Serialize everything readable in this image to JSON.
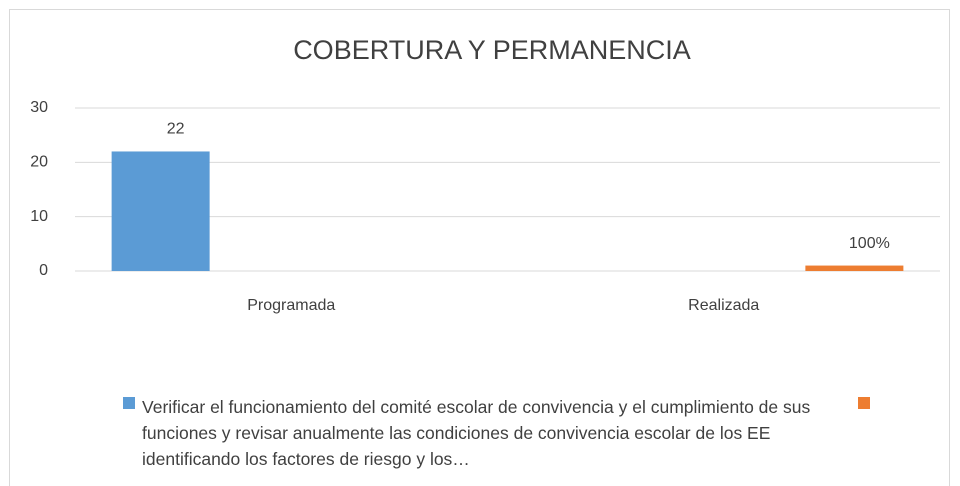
{
  "chart_data": {
    "type": "bar",
    "title": "COBERTURA Y PERMANENCIA",
    "categories": [
      "Programada",
      "Realizada"
    ],
    "series": [
      {
        "name": "Verificar el funcionamiento del comité escolar de convivencia y el cumplimiento de sus funciones y revisar anualmente las condiciones de convivencia escolar de los EE identificando los factores de riesgo y los…",
        "color": "#5b9bd5",
        "values": [
          22,
          null
        ],
        "value_labels": [
          "22",
          null
        ]
      },
      {
        "color": "#ed7d31",
        "values": [
          null,
          1
        ],
        "value_labels": [
          null,
          "100%"
        ]
      }
    ],
    "ylim": [
      0,
      30
    ],
    "yticks": [
      0,
      10,
      20,
      30
    ],
    "grid": true,
    "legend": "bottom"
  }
}
